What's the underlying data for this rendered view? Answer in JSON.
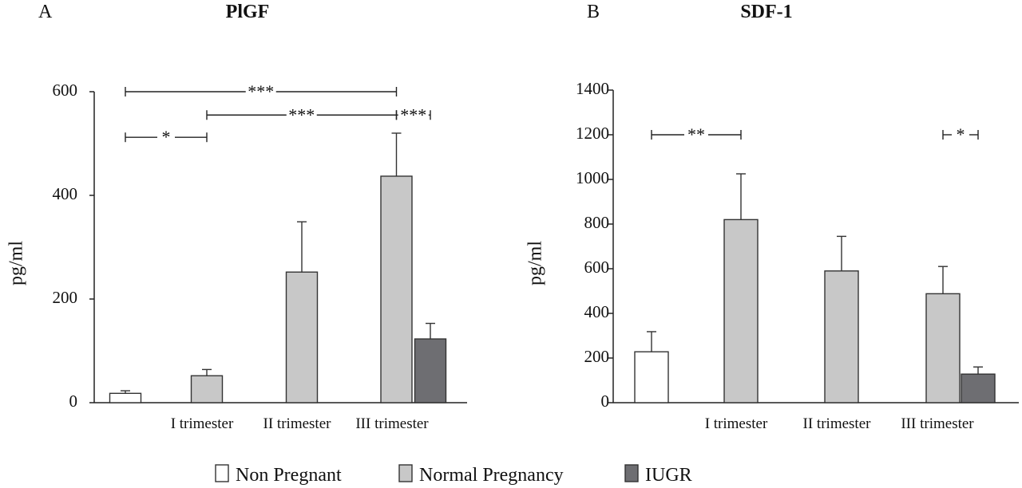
{
  "legend": [
    {
      "label": "Non Pregnant",
      "color": "#ffffff"
    },
    {
      "label": "Normal Pregnancy",
      "color": "#c8c8c8"
    },
    {
      "label": "IUGR",
      "color": "#6e6e72"
    }
  ],
  "chart_data": [
    {
      "type": "bar",
      "panel": "A",
      "title": "PlGF",
      "ylabel": "pg/ml",
      "ylim": [
        0,
        600
      ],
      "yticks": [
        0,
        200,
        400,
        600
      ],
      "categories": [
        "",
        "I trimester",
        "II trimester",
        "III trimester"
      ],
      "series": [
        {
          "name": "Non Pregnant",
          "color": "#ffffff",
          "values": [
            18,
            null,
            null,
            null
          ],
          "errors": [
            5,
            null,
            null,
            null
          ]
        },
        {
          "name": "Normal Pregnancy",
          "color": "#c8c8c8",
          "values": [
            null,
            52,
            252,
            437
          ],
          "errors": [
            null,
            12,
            97,
            83
          ]
        },
        {
          "name": "IUGR",
          "color": "#6e6e72",
          "values": [
            null,
            null,
            null,
            123
          ],
          "errors": [
            null,
            null,
            null,
            30
          ]
        }
      ],
      "significance": [
        {
          "from": {
            "category": 0,
            "series": "Non Pregnant"
          },
          "to": {
            "category": 3,
            "series": "Normal Pregnancy"
          },
          "y": 600,
          "label": "***"
        },
        {
          "from": {
            "category": 1,
            "series": "Normal Pregnancy"
          },
          "to": {
            "category": 3,
            "series": "Normal Pregnancy"
          },
          "y": 555,
          "label": "***"
        },
        {
          "from": {
            "category": 3,
            "series": "Normal Pregnancy"
          },
          "to": {
            "category": 3,
            "series": "IUGR"
          },
          "y": 555,
          "label": "***"
        },
        {
          "from": {
            "category": 0,
            "series": "Non Pregnant"
          },
          "to": {
            "category": 1,
            "series": "Normal Pregnancy"
          },
          "y": 512,
          "label": "*"
        }
      ]
    },
    {
      "type": "bar",
      "panel": "B",
      "title": "SDF-1",
      "ylabel": "pg/ml",
      "ylim": [
        0,
        1400
      ],
      "yticks": [
        0,
        200,
        400,
        600,
        800,
        1000,
        1200,
        1400
      ],
      "categories": [
        "",
        "I trimester",
        "II trimester",
        "III trimester"
      ],
      "series": [
        {
          "name": "Non Pregnant",
          "color": "#ffffff",
          "values": [
            228,
            null,
            null,
            null
          ],
          "errors": [
            90,
            null,
            null,
            null
          ]
        },
        {
          "name": "Normal Pregnancy",
          "color": "#c8c8c8",
          "values": [
            null,
            820,
            590,
            488
          ],
          "errors": [
            null,
            205,
            155,
            122
          ]
        },
        {
          "name": "IUGR",
          "color": "#6e6e72",
          "values": [
            null,
            null,
            null,
            128
          ],
          "errors": [
            null,
            null,
            null,
            32
          ]
        }
      ],
      "significance": [
        {
          "from": {
            "category": 0,
            "series": "Non Pregnant"
          },
          "to": {
            "category": 1,
            "series": "Normal Pregnancy"
          },
          "y": 1200,
          "label": "**"
        },
        {
          "from": {
            "category": 3,
            "series": "Normal Pregnancy"
          },
          "to": {
            "category": 3,
            "series": "IUGR"
          },
          "y": 1200,
          "label": "*"
        }
      ]
    }
  ]
}
